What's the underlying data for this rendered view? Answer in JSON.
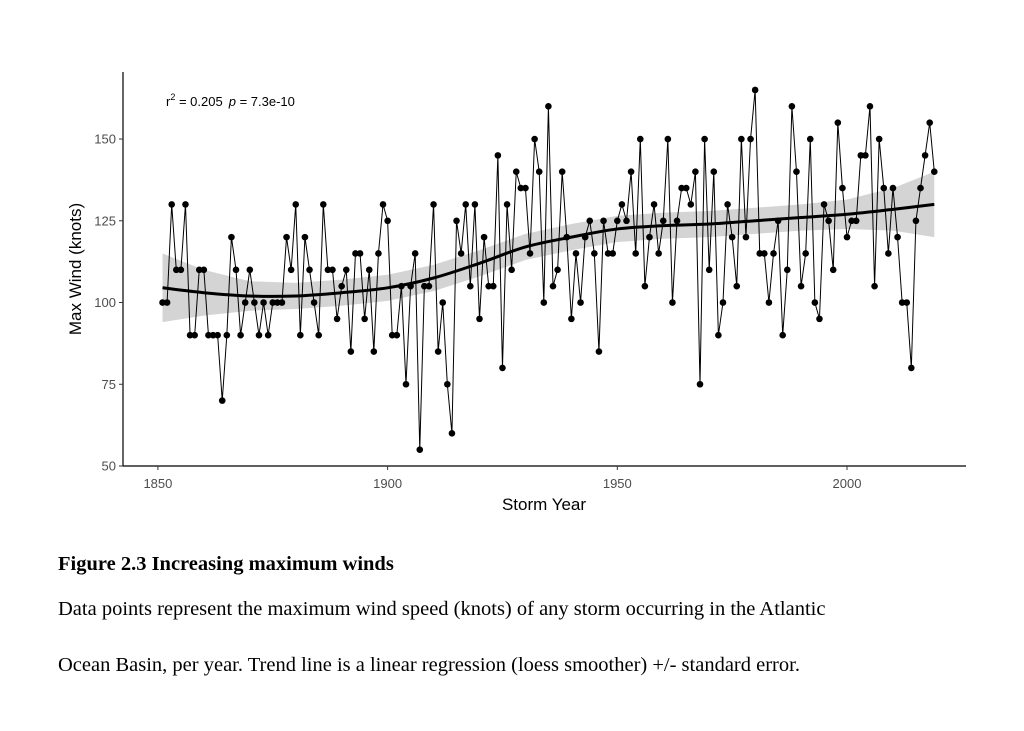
{
  "chart_data": {
    "type": "line",
    "xlabel": "Storm Year",
    "ylabel": "Max Wind (knots)",
    "annotation": {
      "r_label": "r",
      "r_exp": "2",
      "r_value": " = 0.205",
      "p_label": "p",
      "p_value": " = 7.3e-10"
    },
    "xlim": [
      1842.4,
      2025.9
    ],
    "xticks": [
      1850,
      1900,
      1950,
      2000
    ],
    "ylim": [
      50,
      170.5
    ],
    "yticks": [
      50,
      75,
      100,
      125,
      150
    ],
    "color": "#000000",
    "x": [
      1851,
      1852,
      1853,
      1854,
      1855,
      1856,
      1857,
      1858,
      1859,
      1860,
      1861,
      1862,
      1863,
      1864,
      1865,
      1866,
      1867,
      1868,
      1869,
      1870,
      1871,
      1872,
      1873,
      1874,
      1875,
      1876,
      1877,
      1878,
      1879,
      1880,
      1881,
      1882,
      1883,
      1884,
      1885,
      1886,
      1887,
      1888,
      1889,
      1890,
      1891,
      1892,
      1893,
      1894,
      1895,
      1896,
      1897,
      1898,
      1899,
      1900,
      1901,
      1902,
      1903,
      1904,
      1905,
      1906,
      1907,
      1908,
      1909,
      1910,
      1911,
      1912,
      1913,
      1914,
      1915,
      1916,
      1917,
      1918,
      1919,
      1920,
      1921,
      1922,
      1923,
      1924,
      1925,
      1926,
      1927,
      1928,
      1929,
      1930,
      1931,
      1932,
      1933,
      1934,
      1935,
      1936,
      1937,
      1938,
      1939,
      1940,
      1941,
      1942,
      1943,
      1944,
      1945,
      1946,
      1947,
      1948,
      1949,
      1950,
      1951,
      1952,
      1953,
      1954,
      1955,
      1956,
      1957,
      1958,
      1959,
      1960,
      1961,
      1962,
      1963,
      1964,
      1965,
      1966,
      1967,
      1968,
      1969,
      1970,
      1971,
      1972,
      1973,
      1974,
      1975,
      1976,
      1977,
      1978,
      1979,
      1980,
      1981,
      1982,
      1983,
      1984,
      1985,
      1986,
      1987,
      1988,
      1989,
      1990,
      1991,
      1992,
      1993,
      1994,
      1995,
      1996,
      1997,
      1998,
      1999,
      2000,
      2001,
      2002,
      2003,
      2004,
      2005,
      2006,
      2007,
      2008,
      2009,
      2010,
      2011,
      2012,
      2013,
      2014,
      2015,
      2016,
      2017,
      2018,
      2019
    ],
    "values": [
      100,
      100,
      130,
      110,
      110,
      130,
      90,
      90,
      110,
      110,
      90,
      90,
      90,
      70,
      90,
      120,
      110,
      90,
      100,
      110,
      100,
      90,
      100,
      90,
      100,
      100,
      100,
      120,
      110,
      130,
      90,
      120,
      110,
      100,
      90,
      130,
      110,
      110,
      95,
      105,
      110,
      85,
      115,
      115,
      95,
      110,
      85,
      115,
      130,
      125,
      90,
      90,
      105,
      75,
      105,
      115,
      55,
      105,
      105,
      130,
      85,
      100,
      75,
      60,
      125,
      115,
      130,
      105,
      130,
      95,
      120,
      105,
      105,
      145,
      80,
      130,
      110,
      140,
      135,
      135,
      115,
      150,
      140,
      100,
      160,
      105,
      110,
      140,
      120,
      95,
      115,
      100,
      120,
      125,
      115,
      85,
      125,
      115,
      115,
      125,
      130,
      125,
      140,
      115,
      150,
      105,
      120,
      130,
      115,
      125,
      150,
      100,
      125,
      135,
      135,
      130,
      140,
      75,
      150,
      110,
      140,
      90,
      100,
      130,
      120,
      105,
      150,
      120,
      150,
      165,
      115,
      115,
      100,
      115,
      125,
      90,
      110,
      160,
      140,
      105,
      115,
      150,
      100,
      95,
      130,
      125,
      110,
      155,
      135,
      120,
      125,
      125,
      145,
      145,
      160,
      105,
      150,
      135,
      115,
      135,
      120,
      100,
      100,
      80,
      125,
      135,
      145,
      155,
      140
    ],
    "trend": {
      "x": [
        1851,
        1860,
        1870,
        1880,
        1890,
        1900,
        1910,
        1920,
        1930,
        1940,
        1950,
        1960,
        1970,
        1980,
        1990,
        2000,
        2010,
        2019
      ],
      "values": [
        104.5,
        103,
        102,
        102,
        103,
        104.5,
        107.5,
        112,
        117,
        120,
        122.5,
        123.5,
        124,
        125,
        126,
        127,
        128.5,
        130
      ],
      "lower": [
        94,
        96,
        97.5,
        98,
        99,
        100.5,
        103.5,
        108,
        113,
        116,
        118.5,
        119.5,
        120,
        121,
        122,
        122.5,
        122,
        120
      ],
      "upper": [
        115,
        110,
        106.5,
        106,
        107,
        108.5,
        111.5,
        116,
        121,
        124,
        126.5,
        127.5,
        128,
        129,
        130,
        131.5,
        135,
        140
      ]
    }
  },
  "caption": {
    "title": "Figure 2.3 Increasing maximum winds",
    "lines": [
      "Data points represent the maximum wind speed (knots) of any storm occurring in the Atlantic",
      "Ocean Basin, per year. Trend line is a linear regression (loess smoother) +/- standard error."
    ]
  }
}
